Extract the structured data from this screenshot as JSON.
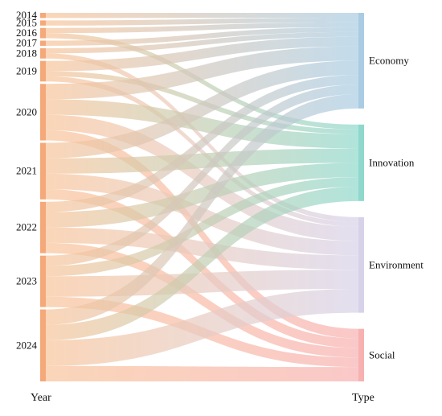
{
  "chart_data": {
    "type": "sankey",
    "left_axis_label": "Year",
    "right_axis_label": "Type",
    "sources": [
      "2014",
      "2015",
      "2016",
      "2017",
      "2018",
      "2019",
      "2020",
      "2021",
      "2022",
      "2023",
      "2024"
    ],
    "targets": [
      "Economy",
      "Innovation",
      "Environment",
      "Social"
    ],
    "source_color": "#f8c49a",
    "target_colors": {
      "Economy": "#a9cce3",
      "Innovation": "#8fd8cb",
      "Environment": "#d7d2e8",
      "Social": "#f7b1b1"
    },
    "links": [
      {
        "source": "2014",
        "target": "Economy",
        "value": 1
      },
      {
        "source": "2015",
        "target": "Economy",
        "value": 1
      },
      {
        "source": "2016",
        "target": "Economy",
        "value": 1
      },
      {
        "source": "2016",
        "target": "Innovation",
        "value": 1
      },
      {
        "source": "2017",
        "target": "Economy",
        "value": 1
      },
      {
        "source": "2018",
        "target": "Economy",
        "value": 1
      },
      {
        "source": "2018",
        "target": "Environment",
        "value": 1
      },
      {
        "source": "2019",
        "target": "Economy",
        "value": 2
      },
      {
        "source": "2019",
        "target": "Innovation",
        "value": 1
      },
      {
        "source": "2019",
        "target": "Environment",
        "value": 1
      },
      {
        "source": "2020",
        "target": "Economy",
        "value": 3
      },
      {
        "source": "2020",
        "target": "Innovation",
        "value": 3
      },
      {
        "source": "2020",
        "target": "Environment",
        "value": 3
      },
      {
        "source": "2020",
        "target": "Social",
        "value": 2
      },
      {
        "source": "2021",
        "target": "Economy",
        "value": 3
      },
      {
        "source": "2021",
        "target": "Innovation",
        "value": 3
      },
      {
        "source": "2021",
        "target": "Environment",
        "value": 3
      },
      {
        "source": "2021",
        "target": "Social",
        "value": 2
      },
      {
        "source": "2022",
        "target": "Economy",
        "value": 2
      },
      {
        "source": "2022",
        "target": "Innovation",
        "value": 3
      },
      {
        "source": "2022",
        "target": "Environment",
        "value": 3
      },
      {
        "source": "2022",
        "target": "Social",
        "value": 2
      },
      {
        "source": "2023",
        "target": "Economy",
        "value": 2
      },
      {
        "source": "2023",
        "target": "Innovation",
        "value": 2
      },
      {
        "source": "2023",
        "target": "Environment",
        "value": 4
      },
      {
        "source": "2023",
        "target": "Social",
        "value": 2
      },
      {
        "source": "2024",
        "target": "Economy",
        "value": 3
      },
      {
        "source": "2024",
        "target": "Innovation",
        "value": 3
      },
      {
        "source": "2024",
        "target": "Environment",
        "value": 5
      },
      {
        "source": "2024",
        "target": "Social",
        "value": 3
      }
    ]
  }
}
